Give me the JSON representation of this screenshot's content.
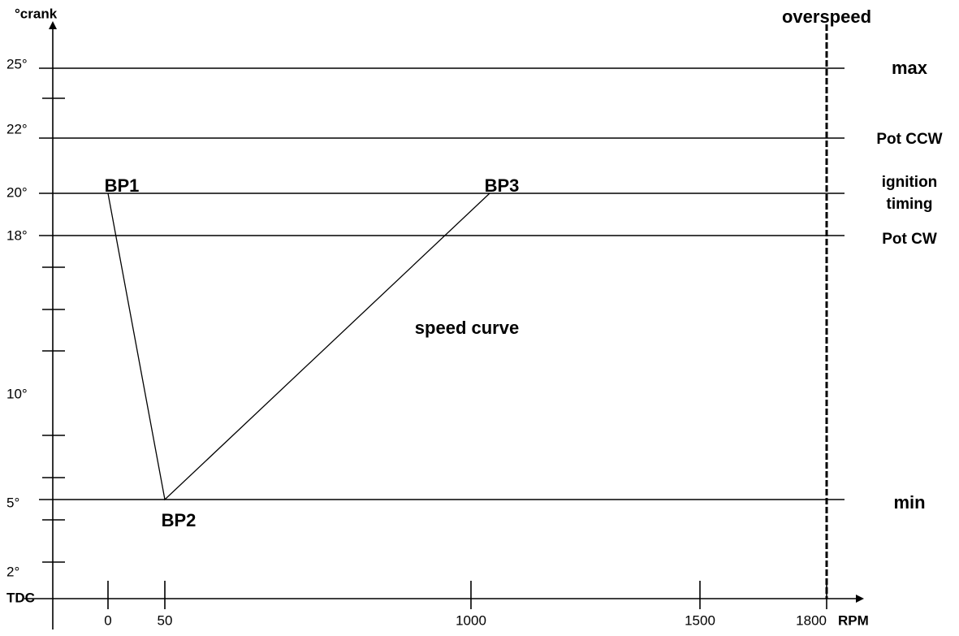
{
  "y_axis": {
    "label": "°crank",
    "ticks": [
      "25°",
      "22°",
      "20°",
      "18°",
      "10°",
      "5°",
      "2°",
      "TDC"
    ]
  },
  "x_axis": {
    "label": "RPM",
    "ticks": [
      "0",
      "50",
      "1000",
      "1500",
      "1800"
    ]
  },
  "levels": [
    [
      "max"
    ],
    [
      "Pot CCW"
    ],
    [
      "ignition",
      "timing"
    ],
    [
      "Pot CW"
    ],
    [
      "min"
    ]
  ],
  "overspeed": "overspeed",
  "points": [
    "BP1",
    "BP2",
    "BP3"
  ],
  "curve_label": "speed curve"
}
